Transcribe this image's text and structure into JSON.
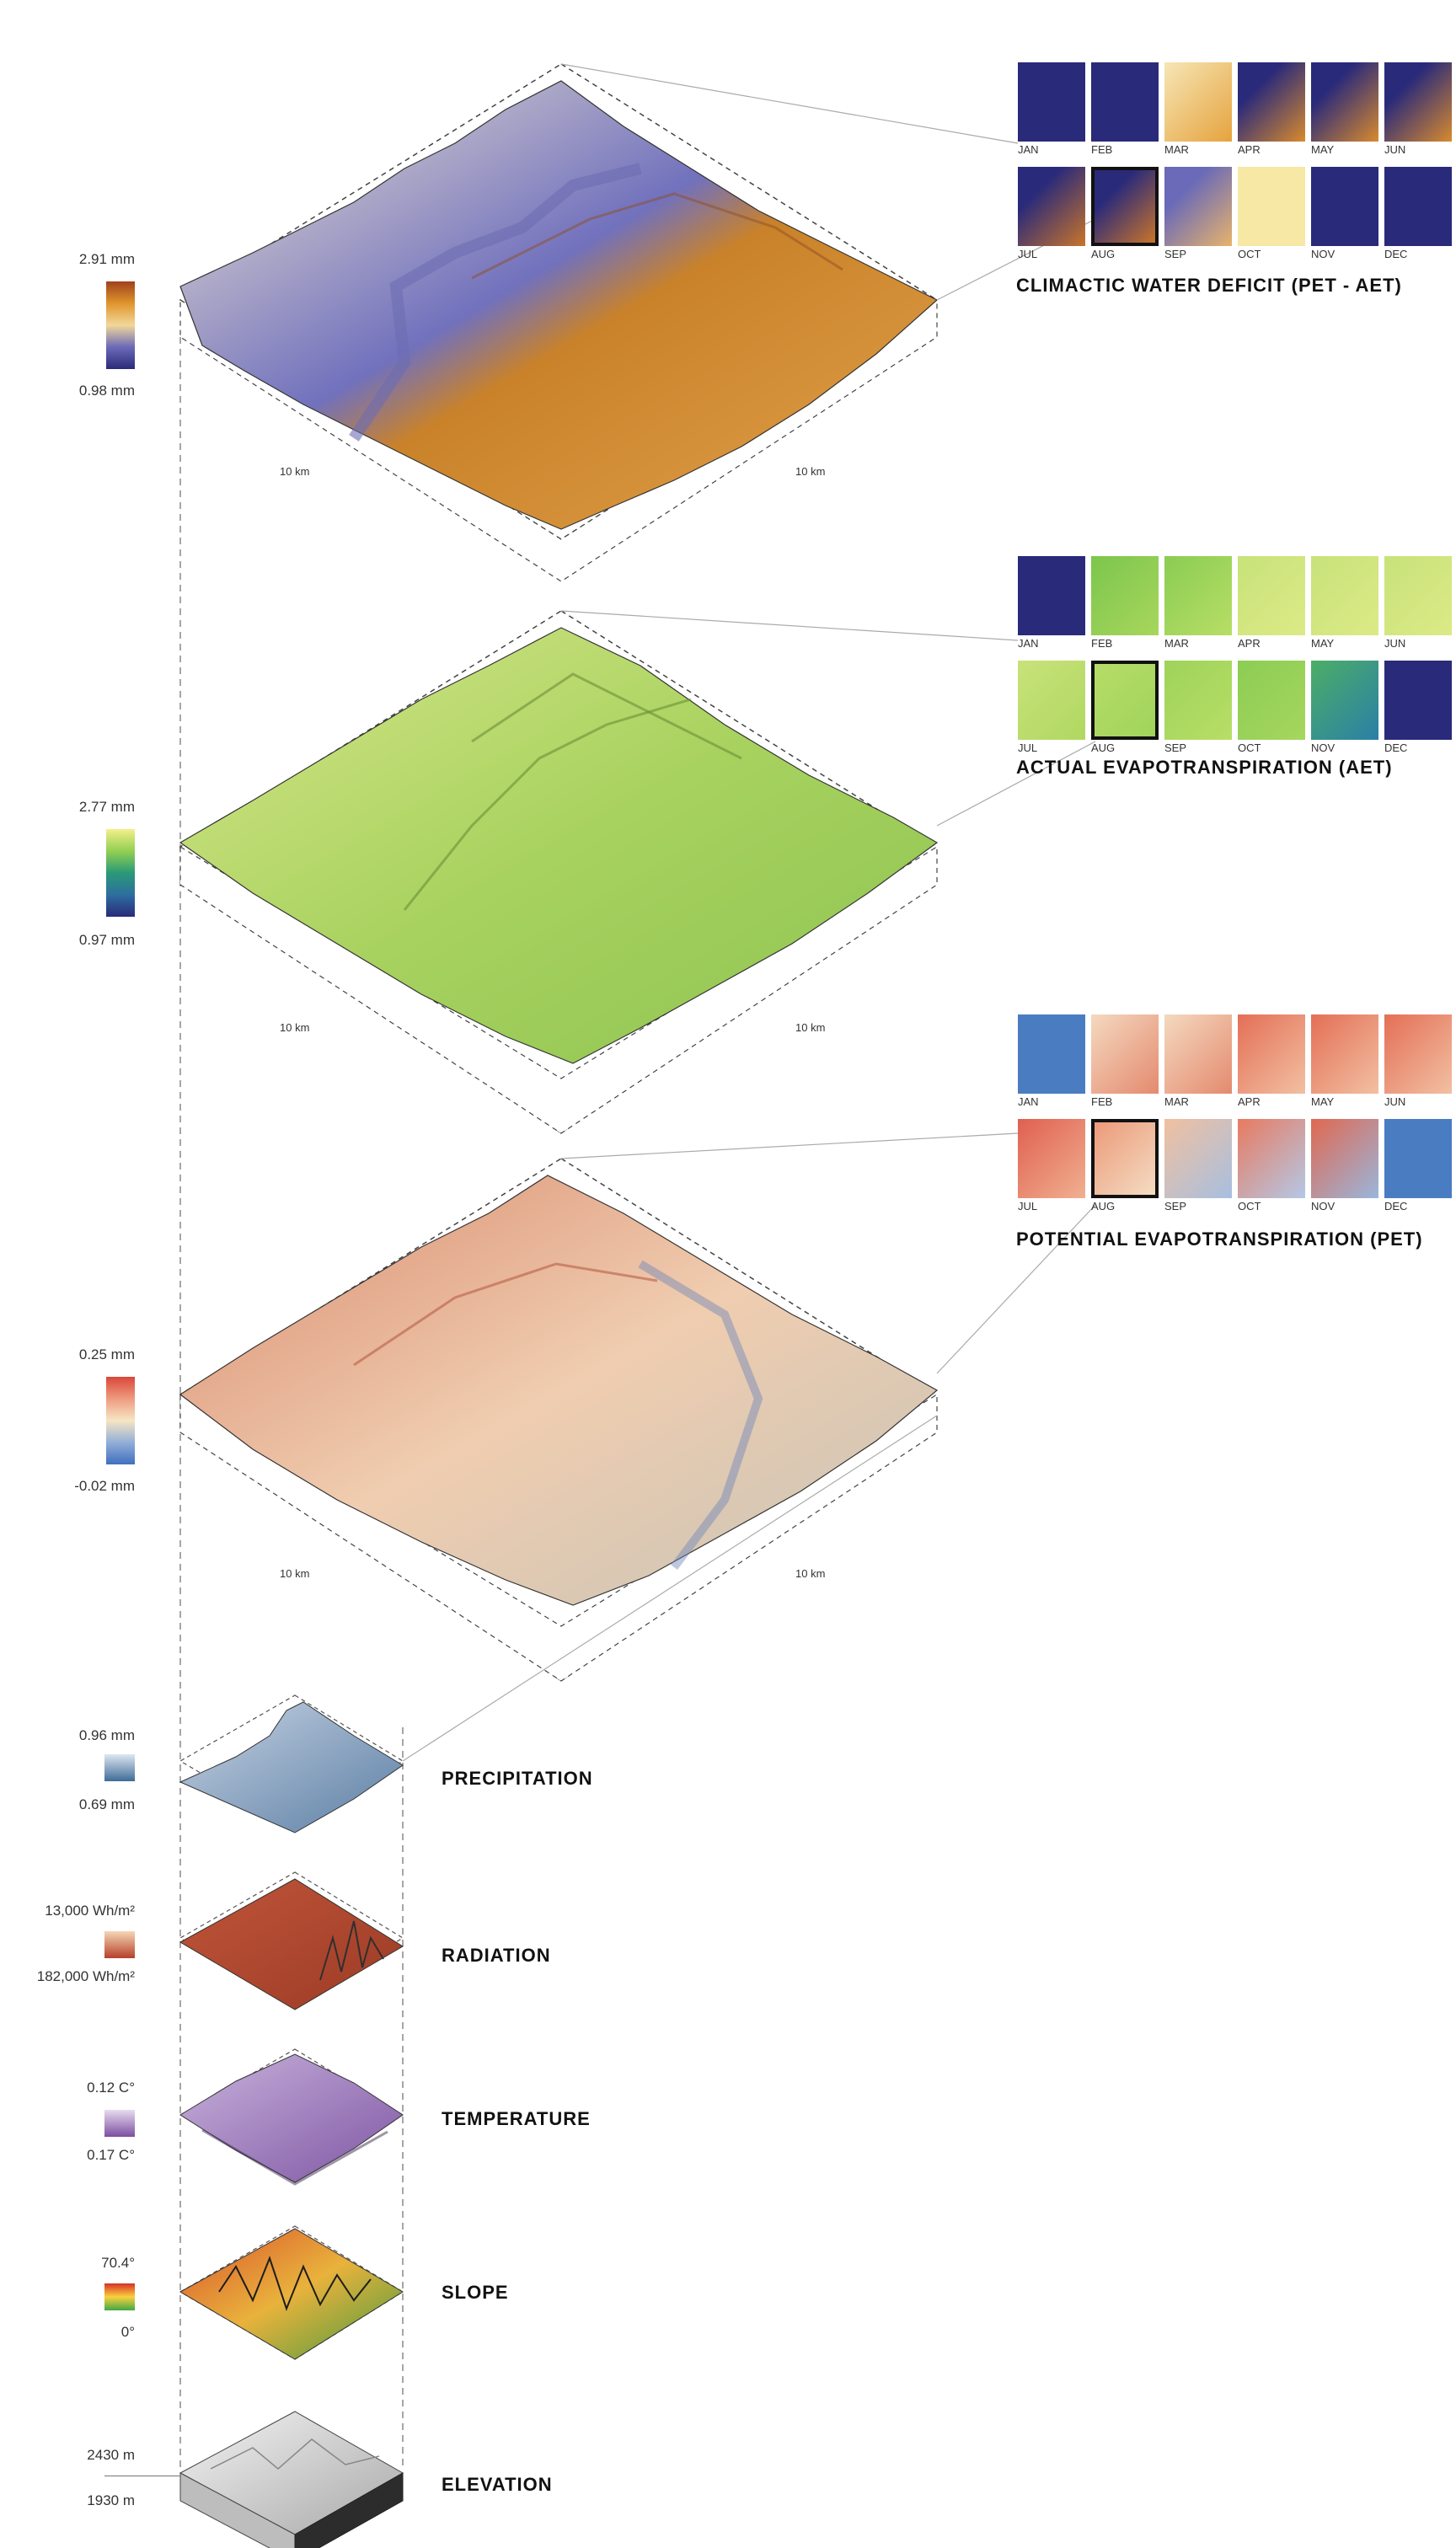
{
  "layers": [
    {
      "id": "cwd",
      "title": "CLIMACTIC WATER DEFICIT (PET - AET)",
      "scale_max": "2.91 mm",
      "scale_min": "0.98 mm",
      "km_left": "10 km",
      "km_right": "10 km",
      "colors": [
        "#a0411c",
        "#e0952c",
        "#f2d79a",
        "#6a6ab8",
        "#2a2a7a"
      ],
      "months": [
        "JAN",
        "FEB",
        "MAR",
        "APR",
        "MAY",
        "JUN",
        "JUL",
        "AUG",
        "SEP",
        "OCT",
        "NOV",
        "DEC"
      ],
      "highlight_month": "AUG"
    },
    {
      "id": "aet",
      "title": "ACTUAL EVAPOTRANSPIRATION (AET)",
      "scale_max": "2.77 mm",
      "scale_min": "0.97 mm",
      "km_left": "10 km",
      "km_right": "10 km",
      "colors": [
        "#f3f08a",
        "#93cf52",
        "#2a9a76",
        "#2d6ea0",
        "#2a2a7a"
      ],
      "months": [
        "JAN",
        "FEB",
        "MAR",
        "APR",
        "MAY",
        "JUN",
        "JUL",
        "AUG",
        "SEP",
        "OCT",
        "NOV",
        "DEC"
      ],
      "highlight_month": "AUG"
    },
    {
      "id": "pet",
      "title": "POTENTIAL EVAPOTRANSPIRATION (PET)",
      "scale_max": "0.25 mm",
      "scale_min": "-0.02 mm",
      "km_left": "10 km",
      "km_right": "10 km",
      "colors": [
        "#d9473a",
        "#ef9b80",
        "#f5e6c4",
        "#93aed8",
        "#3f6fbf"
      ],
      "months": [
        "JAN",
        "FEB",
        "MAR",
        "APR",
        "MAY",
        "JUN",
        "JUL",
        "AUG",
        "SEP",
        "OCT",
        "NOV",
        "DEC"
      ],
      "highlight_month": "AUG"
    }
  ],
  "inputs": [
    {
      "id": "precip",
      "title": "PRECIPITATION",
      "scale_max": "0.96 mm",
      "scale_min": "0.69 mm",
      "colors": [
        "#dfe7f0",
        "#3e6b98"
      ]
    },
    {
      "id": "rad",
      "title": "RADIATION",
      "scale_max": "13,000 Wh/m²",
      "scale_min": "182,000 Wh/m²",
      "colors": [
        "#f5d7b5",
        "#b5412a"
      ]
    },
    {
      "id": "temp",
      "title": "TEMPERATURE",
      "scale_max": "0.12 C°",
      "scale_min": "0.17 C°",
      "colors": [
        "#e8dcef",
        "#7b4ea0"
      ]
    },
    {
      "id": "slope",
      "title": "SLOPE",
      "scale_max": "70.4°",
      "scale_min": "0°",
      "colors": [
        "#d73027",
        "#f9d13e",
        "#3fa845"
      ]
    },
    {
      "id": "elev",
      "title": "ELEVATION",
      "scale_max": "2430 m",
      "scale_min": "1930 m",
      "colors": [
        "#ffffff",
        "#999999"
      ]
    }
  ]
}
